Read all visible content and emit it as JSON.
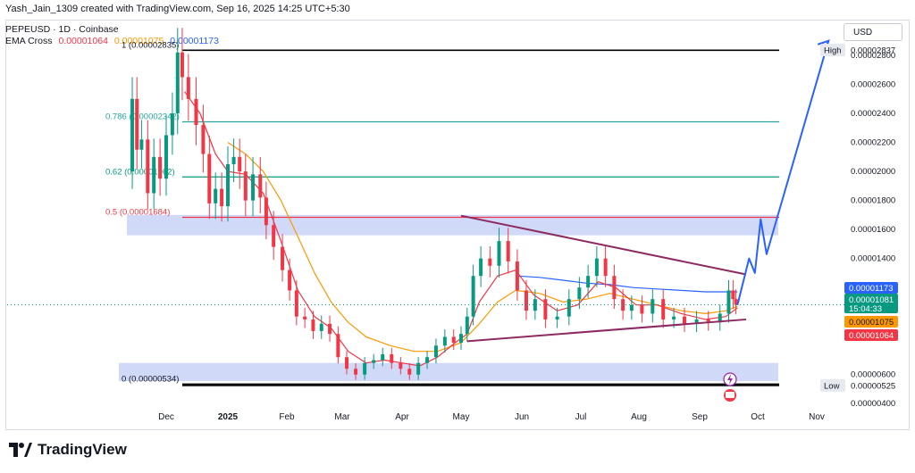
{
  "header": {
    "attribution": "Yash_Jain_1309 created with TradingView.com, Sep 16, 2025 14:25 UTC+5:30",
    "symbol_line": "PEPEUSD · 1D · Coinbase",
    "ema_label": "EMA Cross",
    "ema_values": [
      "0.00001064",
      "0.00001075",
      "0.00001173"
    ]
  },
  "currency": "USD",
  "brand": "TradingView",
  "colors": {
    "ema_fast": "#f23645",
    "ema_slow": "#ff9800",
    "ema_long": "#2962ff",
    "price": "#089981",
    "fib_786": "#26a69a",
    "fib_62": "#089981",
    "fib_5": "#f23645",
    "zone": "#b8c5f5",
    "triangle": "#8e2a62",
    "projection": "#2962ff"
  },
  "chart_data": {
    "type": "candlestick",
    "title": "PEPEUSD 1D Coinbase",
    "x_tick_labels": [
      "Dec",
      "2025",
      "Feb",
      "Mar",
      "Apr",
      "May",
      "Jun",
      "Jul",
      "Aug",
      "Sep",
      "Oct",
      "Nov"
    ],
    "y_tick_labels": [
      "0.00002800",
      "0.00002600",
      "0.00002400",
      "0.00002200",
      "0.00002000",
      "0.00001800",
      "0.00001600",
      "0.00001400",
      "0.00000600",
      "0.00000400"
    ],
    "y_ticks": [
      2.8e-05,
      2.6e-05,
      2.4e-05,
      2.2e-05,
      2e-05,
      1.8e-05,
      1.6e-05,
      1.4e-05,
      6e-06,
      4e-06
    ],
    "ylim": [
      3.4e-06,
      2.96e-05
    ],
    "price_markers": [
      {
        "label": "High",
        "value": "0.00002837",
        "y": 2.837e-05
      },
      {
        "label": "Low",
        "value": "0.00000525",
        "y": 5.25e-06
      }
    ],
    "price_badges": [
      {
        "value": "0.00001173",
        "y": 1.173e-05,
        "kind": "ema_long"
      },
      {
        "value": "0.00001081",
        "sub": "15:04:33",
        "y": 1.081e-05,
        "kind": "price"
      },
      {
        "value": "0.00001075",
        "y": 1.075e-05,
        "kind": "ema_slow"
      },
      {
        "value": "0.00001064",
        "y": 1.064e-05,
        "kind": "ema_fast"
      }
    ],
    "fib_levels": [
      {
        "label": "1 (0.00002835)",
        "y": 2.835e-05,
        "kind": "black"
      },
      {
        "label": "0.786 (0.00002342)",
        "y": 2.342e-05,
        "kind": "fib_786"
      },
      {
        "label": "0.62 (0.00001962)",
        "y": 1.962e-05,
        "kind": "fib_62"
      },
      {
        "label": "0.5 (0.00001684)",
        "y": 1.684e-05,
        "kind": "fib_5"
      },
      {
        "label": "0 (0.00000534)",
        "y": 5.34e-06,
        "kind": "black"
      }
    ],
    "zones": [
      {
        "name": "upper-zone",
        "y_top": 1.7e-05,
        "y_bottom": 1.56e-05
      },
      {
        "name": "lower-zone",
        "y_top": 6.8e-06,
        "y_bottom": 5.55e-06
      }
    ],
    "month_index": {
      "Dec": 0,
      "2025": 1,
      "Feb": 2,
      "Mar": 3,
      "Apr": 4,
      "May": 5,
      "Jun": 6,
      "Jul": 7,
      "Aug": 8,
      "Sep": 9,
      "Oct": 10,
      "Nov": 11
    },
    "triangle": {
      "upper": [
        [
          5.0,
          1.695e-05
        ],
        [
          9.8,
          1.29e-05
        ]
      ],
      "lower": [
        [
          5.1,
          8.3e-06
        ],
        [
          9.8,
          9.8e-06
        ]
      ]
    },
    "projection_path": [
      [
        9.65,
        1.08e-05
      ],
      [
        9.85,
        1.4e-05
      ],
      [
        9.95,
        1.3e-05
      ],
      [
        10.05,
        1.67e-05
      ],
      [
        10.15,
        1.43e-05
      ],
      [
        11.2,
        2.9e-05
      ]
    ],
    "price_path": [
      [
        -0.6,
        2e-05
      ],
      [
        -0.5,
        2.5e-05
      ],
      [
        -0.45,
        2.15e-05
      ],
      [
        -0.35,
        2.22e-05
      ],
      [
        -0.25,
        1.85e-05
      ],
      [
        -0.15,
        2.1e-05
      ],
      [
        -0.05,
        1.95e-05
      ],
      [
        0.05,
        2.25e-05
      ],
      [
        0.15,
        2.4e-05
      ],
      [
        0.22,
        2.82e-05
      ],
      [
        0.3,
        2.65e-05
      ],
      [
        0.42,
        2.5e-05
      ],
      [
        0.55,
        2.32e-05
      ],
      [
        0.65,
        2.12e-05
      ],
      [
        0.75,
        1.78e-05
      ],
      [
        0.85,
        1.88e-05
      ],
      [
        0.95,
        1.76e-05
      ],
      [
        1.05,
        2.05e-05
      ],
      [
        1.15,
        2.1e-05
      ],
      [
        1.25,
        2e-05
      ],
      [
        1.35,
        1.8e-05
      ],
      [
        1.5,
        1.98e-05
      ],
      [
        1.6,
        1.82e-05
      ],
      [
        1.7,
        1.63e-05
      ],
      [
        1.85,
        1.48e-05
      ],
      [
        2.0,
        1.32e-05
      ],
      [
        2.1,
        1.18e-05
      ],
      [
        2.25,
        1e-05
      ],
      [
        2.4,
        9.8e-06
      ],
      [
        2.55,
        9e-06
      ],
      [
        2.7,
        9.5e-06
      ],
      [
        2.85,
        8.8e-06
      ],
      [
        3.0,
        7.2e-06
      ],
      [
        3.15,
        6.4e-06
      ],
      [
        3.3,
        6e-06
      ],
      [
        3.45,
        6.8e-06
      ],
      [
        3.6,
        7e-06
      ],
      [
        3.75,
        7.4e-06
      ],
      [
        3.9,
        6.8e-06
      ],
      [
        4.05,
        6.4e-06
      ],
      [
        4.2,
        6e-06
      ],
      [
        4.35,
        6.8e-06
      ],
      [
        4.5,
        7.2e-06
      ],
      [
        4.65,
        8e-06
      ],
      [
        4.8,
        8.6e-06
      ],
      [
        4.95,
        8.2e-06
      ],
      [
        5.05,
        8.8e-06
      ],
      [
        5.15,
        1e-05
      ],
      [
        5.25,
        1.28e-05
      ],
      [
        5.4,
        1.4e-05
      ],
      [
        5.55,
        1.35e-05
      ],
      [
        5.7,
        1.52e-05
      ],
      [
        5.85,
        1.38e-05
      ],
      [
        6.0,
        1.18e-05
      ],
      [
        6.15,
        1.04e-05
      ],
      [
        6.3,
        1.12e-05
      ],
      [
        6.5,
        9.8e-06
      ],
      [
        6.7,
        1e-05
      ],
      [
        6.9,
        1.12e-05
      ],
      [
        7.05,
        1.2e-05
      ],
      [
        7.2,
        1.28e-05
      ],
      [
        7.35,
        1.4e-05
      ],
      [
        7.5,
        1.28e-05
      ],
      [
        7.65,
        1.12e-05
      ],
      [
        7.8,
        1.04e-05
      ],
      [
        7.95,
        1.08e-05
      ],
      [
        8.15,
        1.02e-05
      ],
      [
        8.3,
        1.12e-05
      ],
      [
        8.5,
        9.8e-06
      ],
      [
        8.65,
        1e-05
      ],
      [
        8.85,
        9.5e-06
      ],
      [
        9.05,
        9.8e-06
      ],
      [
        9.25,
        9.6e-06
      ],
      [
        9.45,
        1.02e-05
      ],
      [
        9.55,
        1.18e-05
      ],
      [
        9.6,
        1.12e-05
      ],
      [
        9.65,
        1.08e-05
      ]
    ],
    "ema_fast_path": [
      [
        0.3,
        2.55e-05
      ],
      [
        0.55,
        2.4e-05
      ],
      [
        0.8,
        2.12e-05
      ],
      [
        1.0,
        2e-05
      ],
      [
        1.3,
        1.98e-05
      ],
      [
        1.6,
        1.85e-05
      ],
      [
        1.9,
        1.52e-05
      ],
      [
        2.2,
        1.18e-05
      ],
      [
        2.5,
        1e-05
      ],
      [
        2.8,
        9.2e-06
      ],
      [
        3.1,
        7.6e-06
      ],
      [
        3.4,
        6.8e-06
      ],
      [
        3.7,
        7e-06
      ],
      [
        4.0,
        6.8e-06
      ],
      [
        4.3,
        6.6e-06
      ],
      [
        4.6,
        7.2e-06
      ],
      [
        4.9,
        8.2e-06
      ],
      [
        5.1,
        8.8e-06
      ],
      [
        5.3,
        1.1e-05
      ],
      [
        5.6,
        1.28e-05
      ],
      [
        5.9,
        1.32e-05
      ],
      [
        6.2,
        1.15e-05
      ],
      [
        6.6,
        1.04e-05
      ],
      [
        6.95,
        1.08e-05
      ],
      [
        7.3,
        1.24e-05
      ],
      [
        7.6,
        1.2e-05
      ],
      [
        7.95,
        1.08e-05
      ],
      [
        8.3,
        1.08e-05
      ],
      [
        8.7,
        1.02e-05
      ],
      [
        9.1,
        9.8e-06
      ],
      [
        9.45,
        1e-05
      ],
      [
        9.65,
        1.06e-05
      ]
    ],
    "ema_slow_path": [
      [
        1.0,
        2.2e-05
      ],
      [
        1.3,
        2.12e-05
      ],
      [
        1.6,
        2e-05
      ],
      [
        1.9,
        1.8e-05
      ],
      [
        2.2,
        1.55e-05
      ],
      [
        2.5,
        1.3e-05
      ],
      [
        2.8,
        1.1e-05
      ],
      [
        3.1,
        9.6e-06
      ],
      [
        3.4,
        8.6e-06
      ],
      [
        3.8,
        8e-06
      ],
      [
        4.2,
        7.6e-06
      ],
      [
        4.6,
        7.6e-06
      ],
      [
        5.0,
        8.2e-06
      ],
      [
        5.3,
        9.5e-06
      ],
      [
        5.6,
        1.1e-05
      ],
      [
        5.9,
        1.18e-05
      ],
      [
        6.3,
        1.16e-05
      ],
      [
        6.7,
        1.1e-05
      ],
      [
        7.1,
        1.12e-05
      ],
      [
        7.5,
        1.16e-05
      ],
      [
        7.9,
        1.12e-05
      ],
      [
        8.3,
        1.08e-05
      ],
      [
        8.7,
        1.04e-05
      ],
      [
        9.1,
        1.02e-05
      ],
      [
        9.45,
        1.04e-05
      ],
      [
        9.65,
        1.07e-05
      ]
    ],
    "ema_long_path": [
      [
        5.9,
        1.28e-05
      ],
      [
        6.3,
        1.27e-05
      ],
      [
        6.7,
        1.25e-05
      ],
      [
        7.1,
        1.23e-05
      ],
      [
        7.5,
        1.22e-05
      ],
      [
        7.9,
        1.2e-05
      ],
      [
        8.3,
        1.19e-05
      ],
      [
        8.7,
        1.18e-05
      ],
      [
        9.1,
        1.17e-05
      ],
      [
        9.45,
        1.17e-05
      ],
      [
        9.65,
        1.17e-05
      ]
    ]
  }
}
